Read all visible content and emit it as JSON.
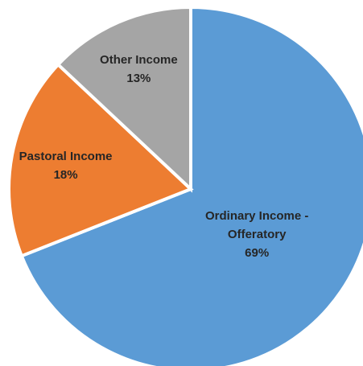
{
  "chart_data": {
    "type": "pie",
    "start_angle_deg": 0,
    "direction": "clockwise",
    "slices": [
      {
        "name": "Ordinary Income - Offeratory",
        "label_lines": [
          "Ordinary Income -",
          "Offeratory"
        ],
        "percent_label": "69%",
        "value": 69,
        "color": "#5B9BD5"
      },
      {
        "name": "Pastoral Income",
        "label_lines": [
          "Pastoral Income"
        ],
        "percent_label": "18%",
        "value": 18,
        "color": "#ED7D31"
      },
      {
        "name": "Other Income",
        "label_lines": [
          "Other Income"
        ],
        "percent_label": "13%",
        "value": 13,
        "color": "#A5A5A5"
      }
    ]
  }
}
